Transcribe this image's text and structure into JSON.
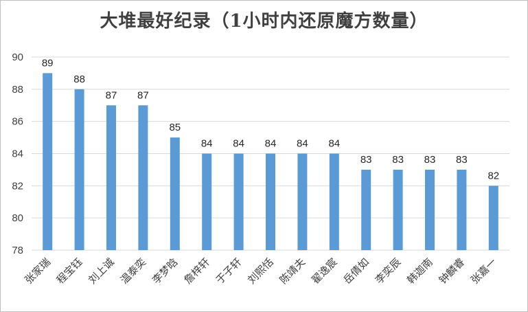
{
  "chart_data": {
    "type": "bar",
    "title": "大堆最好纪录（1小时内还原魔方数量）",
    "categories": [
      "张家瑞",
      "程宝钰",
      "刘上诚",
      "温泰奕",
      "李梦晗",
      "詹梓轩",
      "于子轩",
      "刘熙恬",
      "陈靖夫",
      "翟逸宸",
      "岳倩如",
      "李奕辰",
      "韩迦南",
      "钟麟睿",
      "张嘉一"
    ],
    "values": [
      89,
      88,
      87,
      87,
      85,
      84,
      84,
      84,
      84,
      84,
      83,
      83,
      83,
      83,
      82
    ],
    "ylim": [
      78,
      90
    ],
    "yticks": [
      "78",
      "80",
      "82",
      "84",
      "86",
      "88",
      "90"
    ],
    "xlabel": "",
    "ylabel": "",
    "grid": true,
    "legend": "none",
    "bar_color": "#5b9bd5",
    "gridline_color": "#d9d9d9"
  }
}
